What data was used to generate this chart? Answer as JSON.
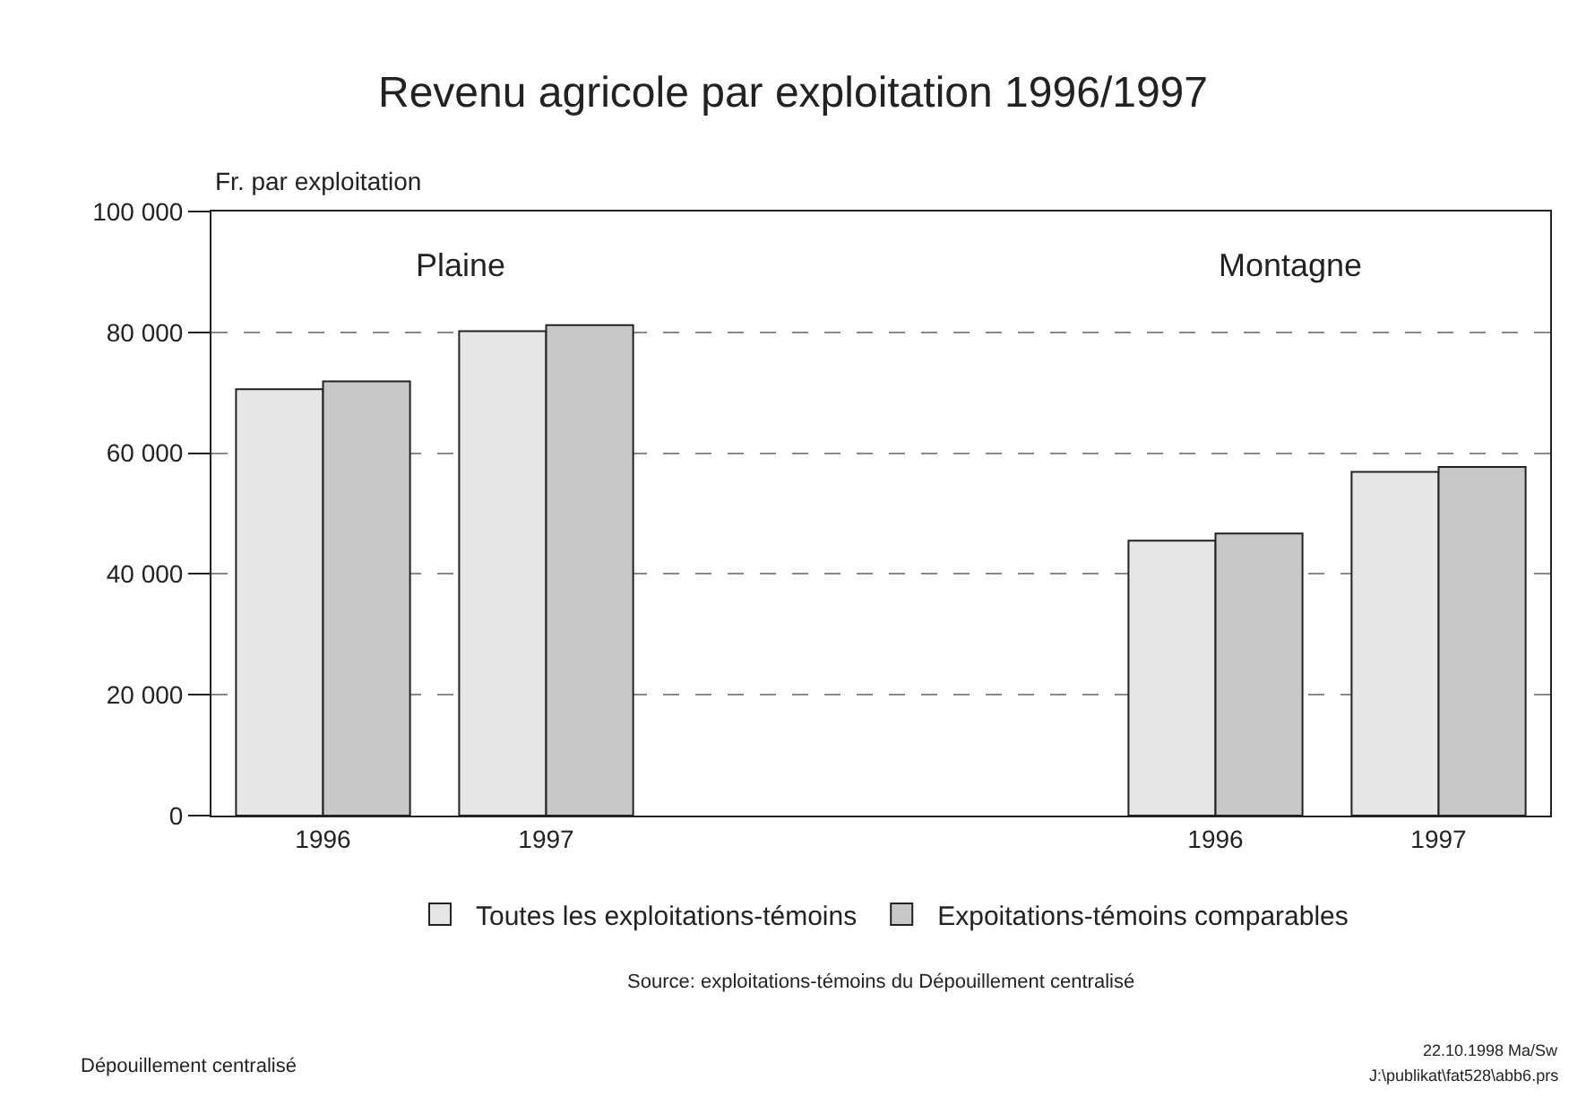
{
  "chart_data": {
    "type": "bar",
    "title": "Revenu agricole par exploitation 1996/1997",
    "ylabel": "Fr. par exploitation",
    "categories": [
      "1996",
      "1997",
      null,
      null,
      "1996",
      "1997"
    ],
    "series": [
      {
        "name": "Toutes les exploitations-témoins",
        "color": "#e6e6e6",
        "values": [
          70600,
          80200,
          null,
          null,
          45500,
          56900
        ]
      },
      {
        "name": "Expoitations-témoins comparables",
        "color": "#c8c8c8",
        "values": [
          71900,
          81200,
          null,
          null,
          46700,
          57700
        ]
      }
    ],
    "ylim": [
      0,
      100000
    ],
    "yticks": [
      {
        "value": 0,
        "label": "0"
      },
      {
        "value": 20000,
        "label": "20 000"
      },
      {
        "value": 40000,
        "label": "40 000"
      },
      {
        "value": 60000,
        "label": "60 000"
      },
      {
        "value": 80000,
        "label": "80 000"
      },
      {
        "value": 100000,
        "label": "100 000"
      }
    ],
    "grid": "y",
    "legend": "bottom",
    "annotations": [
      "Plaine",
      "Montagne",
      "Source: exploitations-témoins du Dépouillement centralisé",
      "Dépouillement centralisé",
      "22.10.1998 Ma/Sw",
      "J:\\publikat\\fat528\\abb6.prs"
    ]
  }
}
